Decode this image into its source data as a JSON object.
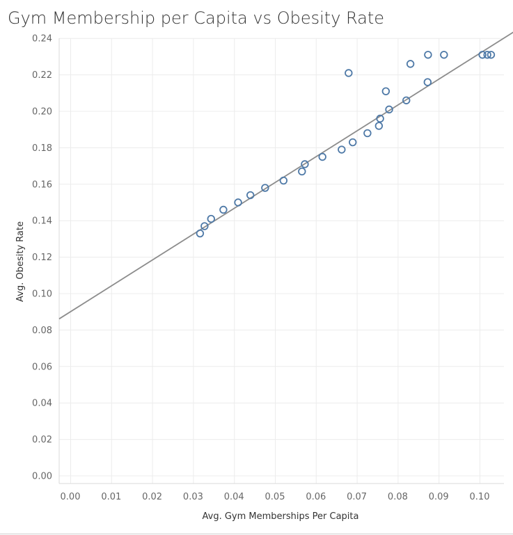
{
  "chart_data": {
    "type": "scatter",
    "title": "Gym Membership per Capita vs Obesity Rate",
    "xlabel": "Avg. Gym Memberships Per Capita",
    "ylabel": "Avg. Obesity Rate",
    "xlim": [
      0.0,
      0.109
    ],
    "ylim": [
      0.0,
      0.24
    ],
    "xticks": [
      "0.00",
      "0.01",
      "0.02",
      "0.03",
      "0.04",
      "0.05",
      "0.06",
      "0.07",
      "0.08",
      "0.09",
      "0.10"
    ],
    "yticks": [
      "0.00",
      "0.02",
      "0.04",
      "0.06",
      "0.08",
      "0.10",
      "0.12",
      "0.14",
      "0.16",
      "0.18",
      "0.20",
      "0.22",
      "0.24"
    ],
    "grid": true,
    "colors": {
      "marker": "#4e79a7",
      "trend_line": "#8c8c8c",
      "grid": "#ececec"
    },
    "trend_line": {
      "x": [
        0.0,
        0.109
      ],
      "y": [
        0.09,
        0.2445
      ]
    },
    "points": [
      {
        "x": 0.0317,
        "y": 0.133
      },
      {
        "x": 0.0328,
        "y": 0.137
      },
      {
        "x": 0.0344,
        "y": 0.141
      },
      {
        "x": 0.0374,
        "y": 0.146
      },
      {
        "x": 0.041,
        "y": 0.15
      },
      {
        "x": 0.044,
        "y": 0.154
      },
      {
        "x": 0.0476,
        "y": 0.158
      },
      {
        "x": 0.0521,
        "y": 0.162
      },
      {
        "x": 0.0566,
        "y": 0.167
      },
      {
        "x": 0.0573,
        "y": 0.171
      },
      {
        "x": 0.0616,
        "y": 0.175
      },
      {
        "x": 0.0663,
        "y": 0.179
      },
      {
        "x": 0.069,
        "y": 0.183
      },
      {
        "x": 0.0726,
        "y": 0.188
      },
      {
        "x": 0.0754,
        "y": 0.192
      },
      {
        "x": 0.0757,
        "y": 0.196
      },
      {
        "x": 0.0779,
        "y": 0.201
      },
      {
        "x": 0.0821,
        "y": 0.206
      },
      {
        "x": 0.0771,
        "y": 0.211
      },
      {
        "x": 0.0873,
        "y": 0.216
      },
      {
        "x": 0.068,
        "y": 0.221
      },
      {
        "x": 0.0831,
        "y": 0.226
      },
      {
        "x": 0.0874,
        "y": 0.231
      },
      {
        "x": 0.0913,
        "y": 0.231
      },
      {
        "x": 0.1007,
        "y": 0.231
      },
      {
        "x": 0.1019,
        "y": 0.231
      },
      {
        "x": 0.1028,
        "y": 0.231
      }
    ]
  }
}
